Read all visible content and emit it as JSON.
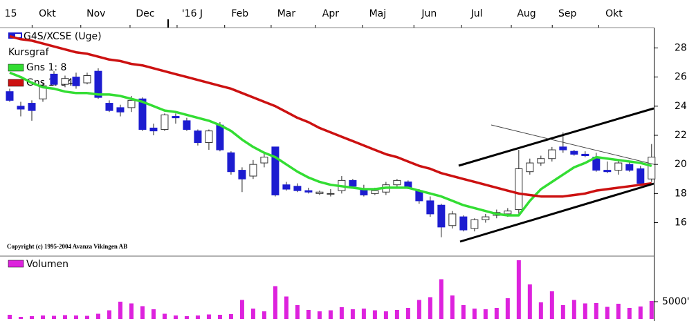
{
  "chart_data": {
    "type": "candlestick",
    "title": "G4S/XCSE (Uge)",
    "price_label": "Kursgraf",
    "copyright": "Copyright (c) 1995-2004 Avanza Vikingen AB",
    "up_color": "#ffffff",
    "down_color": "#1c1cd0",
    "open": [
      25.0,
      24.0,
      24.2,
      24.5,
      26.2,
      25.5,
      26.0,
      25.6,
      26.4,
      24.2,
      23.9,
      23.9,
      24.5,
      22.5,
      22.4,
      23.3,
      23.0,
      22.3,
      21.5,
      22.7,
      20.8,
      19.6,
      19.2,
      20.1,
      21.2,
      18.6,
      18.5,
      18.2,
      18.0,
      18.0,
      18.2,
      18.9,
      18.3,
      18.0,
      18.1,
      18.6,
      18.8,
      18.2,
      17.5,
      17.2,
      15.8,
      16.4,
      15.6,
      16.2,
      16.5,
      16.6,
      16.9,
      19.5,
      20.1,
      20.4,
      21.2,
      20.9,
      20.7,
      20.5,
      19.6,
      19.6,
      20.0,
      19.7,
      19.0
    ],
    "high": [
      25.2,
      24.3,
      24.4,
      25.6,
      26.4,
      26.1,
      26.3,
      26.3,
      26.6,
      24.4,
      24.1,
      24.7,
      24.6,
      22.8,
      23.5,
      23.5,
      23.2,
      22.4,
      22.4,
      22.9,
      20.9,
      19.8,
      20.3,
      20.8,
      21.2,
      18.8,
      18.7,
      18.4,
      18.2,
      18.3,
      19.2,
      19.0,
      18.6,
      18.4,
      18.8,
      19.0,
      18.9,
      18.3,
      17.8,
      17.3,
      16.8,
      16.5,
      16.3,
      16.6,
      16.9,
      17.0,
      21.0,
      20.4,
      20.6,
      21.2,
      22.2,
      21.0,
      20.9,
      20.8,
      20.2,
      20.3,
      20.2,
      19.9,
      21.4
    ],
    "low": [
      24.3,
      23.3,
      23.0,
      24.3,
      25.4,
      25.3,
      25.2,
      25.5,
      24.5,
      23.6,
      23.3,
      23.6,
      22.3,
      22.0,
      22.3,
      22.8,
      22.3,
      21.3,
      21.0,
      20.9,
      19.3,
      18.1,
      19.0,
      19.8,
      17.8,
      18.2,
      18.1,
      18.0,
      17.9,
      17.8,
      18.0,
      18.4,
      17.8,
      17.9,
      17.9,
      18.4,
      18.3,
      17.3,
      16.4,
      15.0,
      15.6,
      15.4,
      15.4,
      16.0,
      16.3,
      16.4,
      16.6,
      19.3,
      19.9,
      20.2,
      20.8,
      20.6,
      20.5,
      19.5,
      19.4,
      19.3,
      19.5,
      18.6,
      18.8
    ],
    "close": [
      24.4,
      23.8,
      23.7,
      25.4,
      25.5,
      25.9,
      25.4,
      26.1,
      24.6,
      23.7,
      23.6,
      24.4,
      22.4,
      22.3,
      23.4,
      23.2,
      22.4,
      21.5,
      22.3,
      21.0,
      19.5,
      19.0,
      20.0,
      20.5,
      17.9,
      18.3,
      18.2,
      18.1,
      18.1,
      18.0,
      18.9,
      18.5,
      17.9,
      18.2,
      18.6,
      18.9,
      18.4,
      17.5,
      16.6,
      15.7,
      16.6,
      15.5,
      16.2,
      16.4,
      16.7,
      16.8,
      19.7,
      20.1,
      20.4,
      21.0,
      21.0,
      20.7,
      20.6,
      19.6,
      19.5,
      20.1,
      19.6,
      18.7,
      20.5
    ],
    "series": [
      {
        "name": "Gns 1: 8",
        "color": "#33dd33",
        "values": [
          26.3,
          26.0,
          25.6,
          25.3,
          25.2,
          25.0,
          24.9,
          24.9,
          24.8,
          24.8,
          24.7,
          24.5,
          24.3,
          24.0,
          23.7,
          23.6,
          23.4,
          23.2,
          23.0,
          22.7,
          22.3,
          21.7,
          21.2,
          20.8,
          20.5,
          20.0,
          19.5,
          19.1,
          18.8,
          18.6,
          18.5,
          18.4,
          18.3,
          18.3,
          18.4,
          18.4,
          18.4,
          18.2,
          18.0,
          17.8,
          17.5,
          17.2,
          17.0,
          16.8,
          16.6,
          16.5,
          16.5,
          17.5,
          18.3,
          18.8,
          19.3,
          19.8,
          20.1,
          20.5,
          20.4,
          20.3,
          20.2,
          20.1,
          19.9
        ]
      },
      {
        "name": "Gns 1: 34",
        "color": "#cc1111",
        "values": [
          28.8,
          28.6,
          28.5,
          28.3,
          28.1,
          27.9,
          27.7,
          27.6,
          27.4,
          27.2,
          27.1,
          26.9,
          26.8,
          26.6,
          26.4,
          26.2,
          26.0,
          25.8,
          25.6,
          25.4,
          25.2,
          24.9,
          24.6,
          24.3,
          24.0,
          23.6,
          23.2,
          22.9,
          22.5,
          22.2,
          21.9,
          21.6,
          21.3,
          21.0,
          20.7,
          20.5,
          20.2,
          19.9,
          19.7,
          19.4,
          19.2,
          19.0,
          18.8,
          18.6,
          18.4,
          18.2,
          18.0,
          17.9,
          17.8,
          17.8,
          17.8,
          17.9,
          18.0,
          18.2,
          18.3,
          18.4,
          18.5,
          18.6,
          18.7
        ]
      }
    ],
    "xlim": [
      -0.5,
      58.2
    ],
    "xticks": [
      {
        "value": 0.1,
        "label": "15"
      },
      {
        "value": 3.4,
        "label": "Okt"
      },
      {
        "value": 7.8,
        "label": "Nov"
      },
      {
        "value": 12.25,
        "label": "Dec"
      },
      {
        "value": 16.5,
        "label": "'16 J"
      },
      {
        "value": 20.8,
        "label": "Feb"
      },
      {
        "value": 25,
        "label": "Mar"
      },
      {
        "value": 29,
        "label": "Apr"
      },
      {
        "value": 33.25,
        "label": "Maj"
      },
      {
        "value": 37.9,
        "label": "Jun"
      },
      {
        "value": 42.2,
        "label": "Jul"
      },
      {
        "value": 46.7,
        "label": "Aug"
      },
      {
        "value": 50.4,
        "label": "Sep"
      },
      {
        "value": 54.6,
        "label": "Okt"
      }
    ],
    "ylim": [
      13.75,
      29.3
    ],
    "yticks": [
      16,
      18,
      20,
      22,
      24,
      26,
      28
    ],
    "volume": {
      "type": "bar",
      "name": "Volumen",
      "color": "#dd22dd",
      "values": [
        1200,
        600,
        800,
        1000,
        900,
        1100,
        1000,
        900,
        1500,
        2500,
        5000,
        4500,
        3700,
        2800,
        1500,
        1000,
        800,
        1000,
        1300,
        1200,
        1400,
        5500,
        3000,
        2200,
        9500,
        6500,
        4000,
        2600,
        2200,
        2500,
        3400,
        2800,
        3000,
        2500,
        2200,
        2600,
        3200,
        5500,
        6300,
        11500,
        6800,
        4000,
        3000,
        2800,
        3200,
        6000,
        17000,
        10000,
        4800,
        8000,
        4000,
        5500,
        4500,
        4600,
        3500,
        4400,
        3200,
        3600,
        5200
      ],
      "ylim": [
        0,
        18000
      ],
      "yticks": [
        {
          "value": 5000,
          "label": "5000'"
        }
      ]
    }
  }
}
